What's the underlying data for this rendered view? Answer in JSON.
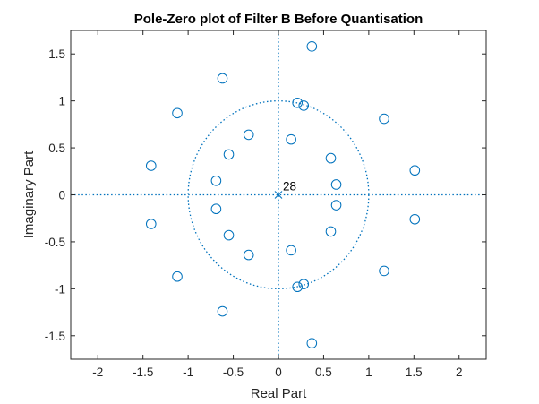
{
  "chart_data": {
    "type": "scatter",
    "title": "Pole-Zero plot of Filter B Before Quantisation",
    "xlabel": "Real Part",
    "ylabel": "Imaginary Part",
    "xlim": [
      -2.3,
      2.3
    ],
    "ylim": [
      -1.75,
      1.75
    ],
    "xticks": [
      -2,
      -1.5,
      -1,
      -0.5,
      0,
      0.5,
      1,
      1.5,
      2
    ],
    "yticks": [
      -1.5,
      -1,
      -0.5,
      0,
      0.5,
      1,
      1.5
    ],
    "xtick_labels": [
      "-2",
      "-1.5",
      "-1",
      "-0.5",
      "0",
      "0.5",
      "1",
      "1.5",
      "2"
    ],
    "ytick_labels": [
      "-1.5",
      "-1",
      "-0.5",
      "0",
      "0.5",
      "1",
      "1.5"
    ],
    "grid": false,
    "unit_circle": true,
    "series_color": "#0072BD",
    "zeros": [
      [
        0.37,
        1.58
      ],
      [
        0.37,
        -1.58
      ],
      [
        -0.62,
        1.24
      ],
      [
        -0.62,
        -1.24
      ],
      [
        -1.12,
        0.87
      ],
      [
        -1.12,
        -0.87
      ],
      [
        -1.41,
        0.31
      ],
      [
        -1.41,
        -0.31
      ],
      [
        1.17,
        0.81
      ],
      [
        1.17,
        -0.81
      ],
      [
        1.51,
        0.26
      ],
      [
        1.51,
        -0.26
      ],
      [
        0.21,
        0.98
      ],
      [
        0.21,
        -0.98
      ],
      [
        0.28,
        0.95
      ],
      [
        0.28,
        -0.95
      ],
      [
        -0.33,
        0.64
      ],
      [
        -0.33,
        -0.64
      ],
      [
        -0.55,
        0.43
      ],
      [
        -0.55,
        -0.43
      ],
      [
        -0.69,
        0.15
      ],
      [
        -0.69,
        -0.15
      ],
      [
        0.14,
        0.59
      ],
      [
        0.14,
        -0.59
      ],
      [
        0.58,
        0.39
      ],
      [
        0.58,
        -0.39
      ],
      [
        0.64,
        0.11
      ],
      [
        0.64,
        -0.11
      ]
    ],
    "poles": [
      [
        0,
        0
      ]
    ],
    "pole_multiplicity_label": "28"
  }
}
